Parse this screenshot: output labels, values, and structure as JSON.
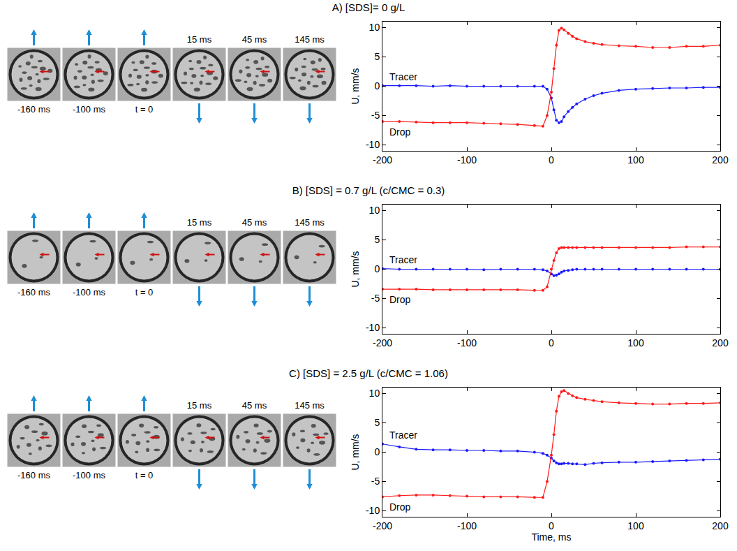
{
  "chart_data": [
    {
      "type": "scatter",
      "title": "A) [SDS]= 0 g/L",
      "y_label": "U, mm/s",
      "frame_labels": [
        "-160 ms",
        "-100 ms",
        "t = 0",
        "15 ms",
        "45 ms",
        "145 ms"
      ],
      "x": [
        -200,
        -180,
        -160,
        -140,
        -120,
        -100,
        -80,
        -60,
        -40,
        -20,
        -10,
        -5,
        0,
        3,
        6,
        9,
        12,
        15,
        20,
        25,
        30,
        40,
        50,
        60,
        80,
        100,
        120,
        140,
        160,
        180,
        200
      ],
      "series": [
        {
          "name": "Tracer",
          "color": "#1a1aff",
          "values": [
            0.1,
            0.1,
            0.1,
            0,
            0.1,
            0,
            0,
            0,
            0,
            0,
            0,
            -0.5,
            -2,
            -4,
            -5.8,
            -6.2,
            -6,
            -5.2,
            -4.3,
            -3.6,
            -3.0,
            -2.2,
            -1.6,
            -1.2,
            -0.7,
            -0.5,
            -0.4,
            -0.3,
            -0.3,
            -0.2,
            -0.2
          ]
        },
        {
          "name": "Drop",
          "color": "#ff1a1a",
          "values": [
            -6.0,
            -6.0,
            -6.1,
            -6.2,
            -6.2,
            -6.2,
            -6.3,
            -6.4,
            -6.5,
            -6.7,
            -6.8,
            -5,
            -1,
            3,
            7,
            9.5,
            9.9,
            9.6,
            9.0,
            8.5,
            8.1,
            7.6,
            7.3,
            7.1,
            6.9,
            6.8,
            6.6,
            6.6,
            6.8,
            6.8,
            7.0
          ]
        }
      ],
      "xlim": [
        -200,
        200
      ],
      "xticks": [
        -200,
        -100,
        0,
        100,
        200
      ],
      "ylim": [
        -11,
        11
      ],
      "yticks": [
        -10,
        -5,
        0,
        5,
        10
      ],
      "grid": false,
      "marker": "circle"
    },
    {
      "type": "scatter",
      "title": "B) [SDS] = 0.7 g/L (c/CMC = 0.3)",
      "y_label": "U, mm/s",
      "frame_labels": [
        "-160 ms",
        "-100 ms",
        "t = 0",
        "15 ms",
        "45 ms",
        "145 ms"
      ],
      "x": [
        -200,
        -180,
        -160,
        -140,
        -120,
        -100,
        -80,
        -60,
        -40,
        -20,
        -10,
        -5,
        0,
        3,
        6,
        9,
        12,
        15,
        20,
        25,
        30,
        40,
        50,
        60,
        80,
        100,
        120,
        140,
        160,
        180,
        200
      ],
      "series": [
        {
          "name": "Tracer",
          "color": "#1a1aff",
          "values": [
            0.1,
            0,
            0,
            0,
            0,
            0,
            -0.1,
            0,
            0,
            0,
            -0.1,
            -0.3,
            -0.8,
            -1.1,
            -1.0,
            -0.8,
            -0.5,
            -0.3,
            -0.2,
            -0.1,
            0,
            0,
            0,
            0,
            0,
            0,
            0,
            0,
            0,
            0,
            0
          ]
        },
        {
          "name": "Drop",
          "color": "#ff1a1a",
          "values": [
            -3.4,
            -3.4,
            -3.4,
            -3.5,
            -3.5,
            -3.5,
            -3.5,
            -3.5,
            -3.5,
            -3.6,
            -3.6,
            -3.0,
            0,
            1.5,
            2.8,
            3.5,
            3.7,
            3.7,
            3.7,
            3.7,
            3.7,
            3.7,
            3.7,
            3.7,
            3.7,
            3.7,
            3.7,
            3.7,
            3.8,
            3.8,
            3.8
          ]
        }
      ],
      "xlim": [
        -200,
        200
      ],
      "xticks": [
        -200,
        -100,
        0,
        100,
        200
      ],
      "ylim": [
        -11,
        11
      ],
      "yticks": [
        -10,
        -5,
        0,
        5,
        10
      ],
      "grid": false,
      "marker": "circle"
    },
    {
      "type": "scatter",
      "title": "C) [SDS] = 2.5 g/L (c/CMC = 1.06)",
      "x_label": "Time, ms",
      "y_label": "U, mm/s",
      "frame_labels": [
        "-160 ms",
        "-100 ms",
        "t = 0",
        "15 ms",
        "45 ms",
        "145 ms"
      ],
      "x": [
        -200,
        -180,
        -160,
        -140,
        -120,
        -100,
        -80,
        -60,
        -40,
        -20,
        -10,
        -5,
        0,
        3,
        6,
        9,
        12,
        15,
        20,
        25,
        30,
        40,
        50,
        60,
        80,
        100,
        120,
        140,
        160,
        180,
        200
      ],
      "series": [
        {
          "name": "Tracer",
          "color": "#1a1aff",
          "values": [
            1.4,
            0.9,
            0.5,
            0.4,
            0.4,
            0.3,
            0.3,
            0.2,
            0.2,
            0,
            -0.2,
            -0.5,
            -1,
            -1.5,
            -1.8,
            -2.0,
            -2.0,
            -1.9,
            -1.9,
            -2.0,
            -2.0,
            -2.1,
            -1.9,
            -1.8,
            -1.7,
            -1.7,
            -1.6,
            -1.5,
            -1.4,
            -1.3,
            -1.2
          ]
        },
        {
          "name": "Drop",
          "color": "#ff1a1a",
          "values": [
            -7.6,
            -7.4,
            -7.3,
            -7.3,
            -7.4,
            -7.5,
            -7.6,
            -7.6,
            -7.6,
            -7.7,
            -7.7,
            -5,
            -0.5,
            3,
            7,
            9.5,
            10.3,
            10.5,
            10.0,
            9.6,
            9.3,
            9.0,
            8.8,
            8.6,
            8.4,
            8.3,
            8.2,
            8.2,
            8.3,
            8.3,
            8.4
          ]
        }
      ],
      "xlim": [
        -200,
        200
      ],
      "xticks": [
        -200,
        -100,
        0,
        100,
        200
      ],
      "ylim": [
        -11,
        11
      ],
      "yticks": [
        -10,
        -5,
        0,
        5,
        10
      ],
      "grid": false,
      "marker": "circle"
    }
  ]
}
